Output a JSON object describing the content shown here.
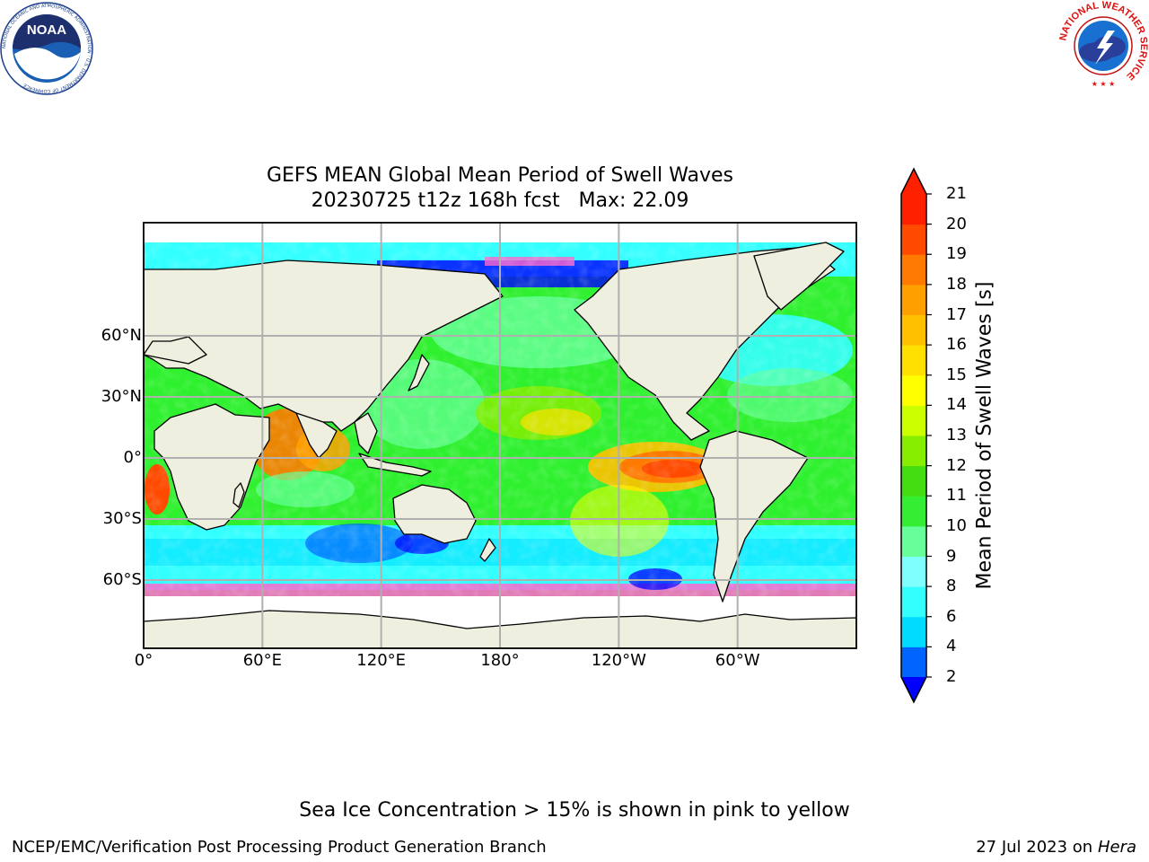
{
  "header": {
    "title_line1": "GEFS MEAN Global Mean Period of Swell Waves",
    "title_line2": "20230725 t12z 168h fcst   Max: 22.09"
  },
  "logos": {
    "noaa": {
      "center_text": "NOAA",
      "ring_text": "NATIONAL OCEANIC AND ATMOSPHERIC ADMINISTRATION · U.S. DEPARTMENT OF COMMERCE"
    },
    "nws": {
      "ring_text": "NATIONAL WEATHER SERVICE"
    }
  },
  "map": {
    "projection": "Plate Carree, 0° to 360° longitude",
    "lat_labels": [
      "60°N",
      "30°N",
      "0°",
      "30°S",
      "60°S"
    ],
    "lon_labels": [
      "0°",
      "60°E",
      "120°E",
      "180°",
      "120°W",
      "60°W"
    ],
    "gridlines": true,
    "land_color": "#efefdf",
    "coastline_color": "#000000"
  },
  "colorbar": {
    "title": "Mean Period of Swell Waves [s]",
    "tick_labels": [
      "21",
      "20",
      "19",
      "18",
      "17",
      "16",
      "15",
      "14",
      "13",
      "12",
      "11",
      "10",
      "9",
      "8",
      "6",
      "4",
      "2"
    ],
    "levels": [
      2,
      4,
      6,
      8,
      9,
      10,
      11,
      12,
      13,
      14,
      15,
      16,
      17,
      18,
      19,
      20,
      21
    ],
    "colors": [
      "#0000ff",
      "#0064ff",
      "#00dcff",
      "#33ffff",
      "#80ffff",
      "#66ff99",
      "#33ee33",
      "#44dd11",
      "#88ee00",
      "#ccff00",
      "#ffff00",
      "#ffe000",
      "#ffc000",
      "#ffa000",
      "#ff7a00",
      "#ff4a00",
      "#ff2000"
    ],
    "extend": "both",
    "under_color": "#0000ff",
    "over_color": "#ff2000"
  },
  "footnote": "Sea Ice Concentration > 15% is shown in pink to yellow",
  "credit": "NCEP/EMC/Verification Post Processing Product Generation Branch",
  "datestamp": {
    "date": "27 Jul 2023 on ",
    "machine": "Hera"
  }
}
